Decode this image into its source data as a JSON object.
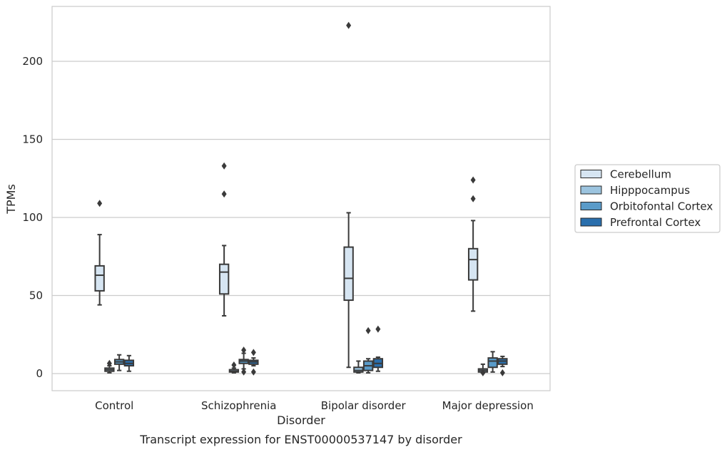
{
  "chart_data": {
    "type": "boxplot",
    "title": "Transcript expression for ENST00000537147 by disorder",
    "xlabel": "Disorder",
    "ylabel": "TPMs",
    "ylim": [
      -11,
      235
    ],
    "yticks": [
      0,
      50,
      100,
      150,
      200
    ],
    "grid": "horizontal",
    "legend_position": "right",
    "categories": [
      "Control",
      "Schizophrenia",
      "Bipolar disorder",
      "Major depression"
    ],
    "series": [
      {
        "name": "Cerebellum",
        "color": "#d6e5f2",
        "boxes": [
          {
            "whislo": 44,
            "q1": 53,
            "med": 63,
            "q3": 69,
            "whishi": 89,
            "fliers": [
              109
            ]
          },
          {
            "whislo": 37,
            "q1": 51,
            "med": 65,
            "q3": 70,
            "whishi": 82,
            "fliers": [
              115,
              133
            ]
          },
          {
            "whislo": 4,
            "q1": 47,
            "med": 61,
            "q3": 81,
            "whishi": 103,
            "fliers": [
              223
            ]
          },
          {
            "whislo": 40,
            "q1": 60,
            "med": 73,
            "q3": 80,
            "whishi": 98,
            "fliers": [
              112,
              124
            ]
          }
        ]
      },
      {
        "name": "Hipppocampus",
        "color": "#9cc4df",
        "boxes": [
          {
            "whislo": 0.5,
            "q1": 1.5,
            "med": 2.5,
            "q3": 3.5,
            "whishi": 5,
            "fliers": [
              6.5
            ]
          },
          {
            "whislo": 0.5,
            "q1": 1,
            "med": 1.5,
            "q3": 2.5,
            "whishi": 3.5,
            "fliers": [
              5.5
            ]
          },
          {
            "whislo": 0.5,
            "q1": 1,
            "med": 2,
            "q3": 4,
            "whishi": 8,
            "fliers": []
          },
          {
            "whislo": 0.5,
            "q1": 1,
            "med": 2,
            "q3": 3,
            "whishi": 6,
            "fliers": [
              0.5
            ]
          }
        ]
      },
      {
        "name": "Orbitofontal Cortex",
        "color": "#5a9bc9",
        "boxes": [
          {
            "whislo": 2,
            "q1": 6,
            "med": 7.5,
            "q3": 9,
            "whishi": 12,
            "fliers": []
          },
          {
            "whislo": 3,
            "q1": 6.5,
            "med": 8,
            "q3": 9,
            "whishi": 13,
            "fliers": [
              1,
              15
            ]
          },
          {
            "whislo": 0.5,
            "q1": 2,
            "med": 5,
            "q3": 8,
            "whishi": 9.5,
            "fliers": [
              27.5
            ]
          },
          {
            "whislo": 1,
            "q1": 4,
            "med": 8,
            "q3": 10,
            "whishi": 14,
            "fliers": []
          }
        ]
      },
      {
        "name": "Prefrontal Cortex",
        "color": "#2a6fad",
        "boxes": [
          {
            "whislo": 1.5,
            "q1": 5,
            "med": 6.5,
            "q3": 8.5,
            "whishi": 11.5,
            "fliers": []
          },
          {
            "whislo": 5,
            "q1": 6,
            "med": 7.5,
            "q3": 8.5,
            "whishi": 10,
            "fliers": [
              1,
              13.5
            ]
          },
          {
            "whislo": 1.5,
            "q1": 4,
            "med": 6.5,
            "q3": 9.5,
            "whishi": 10.5,
            "fliers": [
              28.5
            ]
          },
          {
            "whislo": 4.5,
            "q1": 6,
            "med": 8,
            "q3": 9.5,
            "whishi": 11,
            "fliers": [
              0.5
            ]
          }
        ]
      }
    ]
  }
}
